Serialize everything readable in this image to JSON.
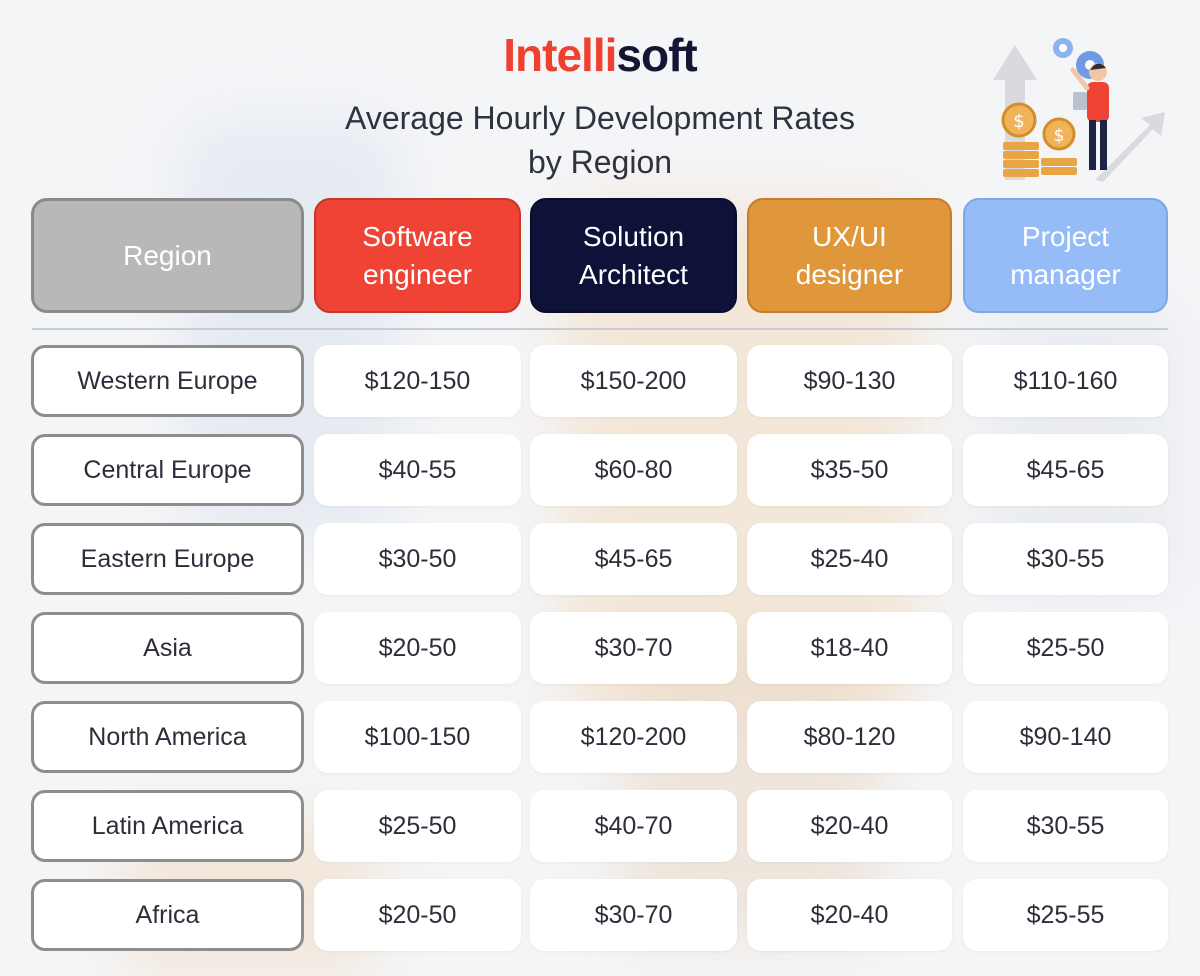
{
  "brand": {
    "part1": "Intelli",
    "part2": "soft"
  },
  "title": {
    "line1": "Average Hourly Development Rates",
    "line2": "by Region"
  },
  "headers": {
    "region": "Region",
    "software_engineer": "Software\nengineer",
    "solution_architect": "Solution\nArchitect",
    "ux_ui_designer": "UX/UI\ndesigner",
    "project_manager": "Project\nmanager"
  },
  "rows": [
    {
      "region": "Western Europe",
      "software_engineer": "$120-150",
      "solution_architect": "$150-200",
      "ux_ui_designer": "$90-130",
      "project_manager": "$110-160"
    },
    {
      "region": "Central Europe",
      "software_engineer": "$40-55",
      "solution_architect": "$60-80",
      "ux_ui_designer": "$35-50",
      "project_manager": "$45-65"
    },
    {
      "region": "Eastern Europe",
      "software_engineer": "$30-50",
      "solution_architect": "$45-65",
      "ux_ui_designer": "$25-40",
      "project_manager": "$30-55"
    },
    {
      "region": "Asia",
      "software_engineer": "$20-50",
      "solution_architect": "$30-70",
      "ux_ui_designer": "$18-40",
      "project_manager": "$25-50"
    },
    {
      "region": "North America",
      "software_engineer": "$100-150",
      "solution_architect": "$120-200",
      "ux_ui_designer": "$80-120",
      "project_manager": "$90-140"
    },
    {
      "region": "Latin America",
      "software_engineer": "$25-50",
      "solution_architect": "$40-70",
      "ux_ui_designer": "$20-40",
      "project_manager": "$30-55"
    },
    {
      "region": "Africa",
      "software_engineer": "$20-50",
      "solution_architect": "$30-70",
      "ux_ui_designer": "$20-40",
      "project_manager": "$25-55"
    }
  ],
  "colors": {
    "brand_red": "#ee4231",
    "brand_navy": "#121633",
    "region_header": "#b8b8b8",
    "software_engineer": "#ef4335",
    "solution_architect": "#0e1138",
    "ux_ui_designer": "#e0973c",
    "project_manager": "#95bcf6"
  },
  "illustration": {
    "icon": "growth-coins-person-icon"
  }
}
